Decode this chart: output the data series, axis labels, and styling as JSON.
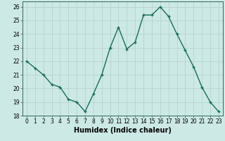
{
  "x": [
    0,
    1,
    2,
    3,
    4,
    5,
    6,
    7,
    8,
    9,
    10,
    11,
    12,
    13,
    14,
    15,
    16,
    17,
    18,
    19,
    20,
    21,
    22,
    23
  ],
  "y": [
    22,
    21.5,
    21,
    20.3,
    20.1,
    19.2,
    19.0,
    18.3,
    19.6,
    21.0,
    23.0,
    24.5,
    22.9,
    23.4,
    25.4,
    25.4,
    26.0,
    25.3,
    24.0,
    22.8,
    21.6,
    20.1,
    19.0,
    18.3
  ],
  "line_color": "#1a6b5a",
  "marker": "+",
  "markersize": 3,
  "linewidth": 1.0,
  "bg_color": "#cce9e5",
  "grid_color": "#b0ceca",
  "xlabel": "Humidex (Indice chaleur)",
  "xlabel_fontsize": 7,
  "ylim": [
    18,
    26.4
  ],
  "xlim": [
    -0.5,
    23.5
  ],
  "yticks": [
    18,
    19,
    20,
    21,
    22,
    23,
    24,
    25,
    26
  ],
  "xticks": [
    0,
    1,
    2,
    3,
    4,
    5,
    6,
    7,
    8,
    9,
    10,
    11,
    12,
    13,
    14,
    15,
    16,
    17,
    18,
    19,
    20,
    21,
    22,
    23
  ],
  "tick_fontsize": 5.5,
  "spine_color": "#336655"
}
